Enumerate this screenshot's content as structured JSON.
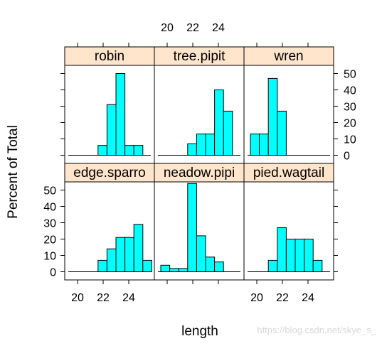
{
  "chart_data": {
    "type": "bar",
    "xlabel": "length",
    "ylabel": "Percent of Total",
    "xlim": [
      19,
      26
    ],
    "ylim": [
      -5,
      55
    ],
    "xticks": [
      20,
      22,
      24
    ],
    "yticks": [
      0,
      10,
      20,
      30,
      40,
      50
    ],
    "bin_width": 0.7,
    "panels": [
      {
        "name": "robin",
        "bars": [
          {
            "x": 21.6,
            "y": 6
          },
          {
            "x": 22.3,
            "y": 31
          },
          {
            "x": 23.0,
            "y": 50
          },
          {
            "x": 23.7,
            "y": 6
          },
          {
            "x": 24.4,
            "y": 6
          }
        ]
      },
      {
        "name": "tree.pipit",
        "bars": [
          {
            "x": 21.6,
            "y": 7
          },
          {
            "x": 22.3,
            "y": 13
          },
          {
            "x": 23.0,
            "y": 13
          },
          {
            "x": 23.7,
            "y": 40
          },
          {
            "x": 24.4,
            "y": 27
          }
        ]
      },
      {
        "name": "wren",
        "bars": [
          {
            "x": 19.5,
            "y": 13
          },
          {
            "x": 20.2,
            "y": 13
          },
          {
            "x": 20.9,
            "y": 47
          },
          {
            "x": 21.6,
            "y": 27
          }
        ]
      },
      {
        "name": "edge.sparro",
        "bars": [
          {
            "x": 21.6,
            "y": 7
          },
          {
            "x": 22.3,
            "y": 14
          },
          {
            "x": 23.0,
            "y": 21
          },
          {
            "x": 23.7,
            "y": 21
          },
          {
            "x": 24.4,
            "y": 29
          },
          {
            "x": 25.1,
            "y": 7
          }
        ]
      },
      {
        "name": "neadow.pipi",
        "bars": [
          {
            "x": 19.5,
            "y": 4
          },
          {
            "x": 20.2,
            "y": 2
          },
          {
            "x": 20.9,
            "y": 2
          },
          {
            "x": 21.6,
            "y": 54
          },
          {
            "x": 22.3,
            "y": 22
          },
          {
            "x": 23.0,
            "y": 9
          },
          {
            "x": 23.7,
            "y": 6
          }
        ]
      },
      {
        "name": "pied.wagtail",
        "bars": [
          {
            "x": 20.9,
            "y": 7
          },
          {
            "x": 21.6,
            "y": 27
          },
          {
            "x": 22.3,
            "y": 20
          },
          {
            "x": 23.0,
            "y": 20
          },
          {
            "x": 23.7,
            "y": 20
          },
          {
            "x": 24.4,
            "y": 7
          }
        ]
      }
    ]
  },
  "watermark": "https://blog.csdn.net/skye_s_"
}
